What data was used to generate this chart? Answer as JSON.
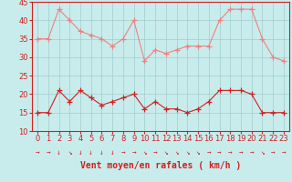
{
  "x": [
    0,
    1,
    2,
    3,
    4,
    5,
    6,
    7,
    8,
    9,
    10,
    11,
    12,
    13,
    14,
    15,
    16,
    17,
    18,
    19,
    20,
    21,
    22,
    23
  ],
  "rafales": [
    35,
    35,
    43,
    40,
    37,
    36,
    35,
    33,
    35,
    40,
    29,
    32,
    31,
    32,
    33,
    33,
    33,
    40,
    43,
    43,
    43,
    35,
    30,
    29
  ],
  "moyen": [
    15,
    15,
    21,
    18,
    21,
    19,
    17,
    18,
    19,
    20,
    16,
    18,
    16,
    16,
    15,
    16,
    18,
    21,
    21,
    21,
    20,
    15,
    15,
    15
  ],
  "line_color_rafales": "#f08080",
  "line_color_moyen": "#d02020",
  "marker": "+",
  "marker_size": 4,
  "bg_color": "#c8ecec",
  "grid_color": "#a0cccc",
  "xlabel": "Vent moyen/en rafales ( km/h )",
  "xlabel_color": "#d02020",
  "xlabel_fontsize": 7,
  "tick_color": "#d02020",
  "tick_fontsize": 6,
  "ylim": [
    10,
    45
  ],
  "yticks": [
    10,
    15,
    20,
    25,
    30,
    35,
    40,
    45
  ],
  "xlim": [
    -0.5,
    23.5
  ],
  "arrow_symbols": [
    "→",
    "→",
    "↓",
    "↘",
    "↓",
    "↓",
    "↓",
    "↓",
    "→",
    "→",
    "↘",
    "→",
    "↘",
    "↘",
    "↘",
    "↘",
    "→",
    "→",
    "→",
    "→",
    "→",
    "↘",
    "→",
    "→"
  ]
}
